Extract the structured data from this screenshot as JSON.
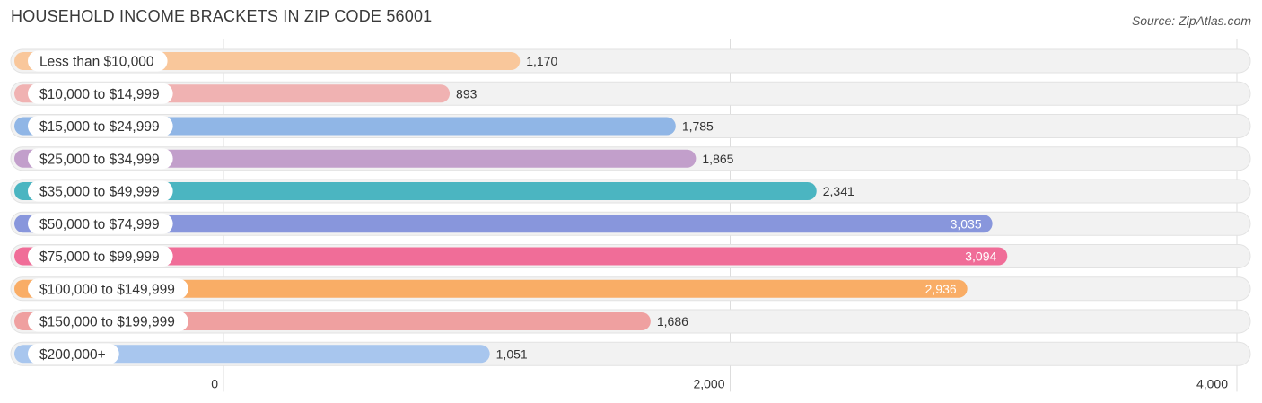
{
  "title": "HOUSEHOLD INCOME BRACKETS IN ZIP CODE 56001",
  "source": "Source: ZipAtlas.com",
  "chart_data": {
    "type": "bar",
    "orientation": "horizontal",
    "title": "HOUSEHOLD INCOME BRACKETS IN ZIP CODE 56001",
    "xlabel": "",
    "ylabel": "",
    "xlim": [
      0,
      4000
    ],
    "grid": true,
    "categories": [
      "Less than $10,000",
      "$10,000 to $14,999",
      "$15,000 to $24,999",
      "$25,000 to $34,999",
      "$35,000 to $49,999",
      "$50,000 to $74,999",
      "$75,000 to $99,999",
      "$100,000 to $149,999",
      "$150,000 to $199,999",
      "$200,000+"
    ],
    "values": [
      1170,
      893,
      1785,
      1865,
      2341,
      3035,
      3094,
      2936,
      1686,
      1051
    ],
    "value_labels": [
      "1,170",
      "893",
      "1,785",
      "1,865",
      "2,341",
      "3,035",
      "3,094",
      "2,936",
      "1,686",
      "1,051"
    ],
    "colors": [
      "#f9c79b",
      "#f0b2b2",
      "#90b6e6",
      "#c29fcb",
      "#4bb5c1",
      "#8896dc",
      "#f06d98",
      "#f9ad66",
      "#efa0a0",
      "#a8c6ee"
    ],
    "ticks": [
      0,
      2000,
      4000
    ],
    "tick_labels": [
      "0",
      "2,000",
      "4,000"
    ]
  }
}
